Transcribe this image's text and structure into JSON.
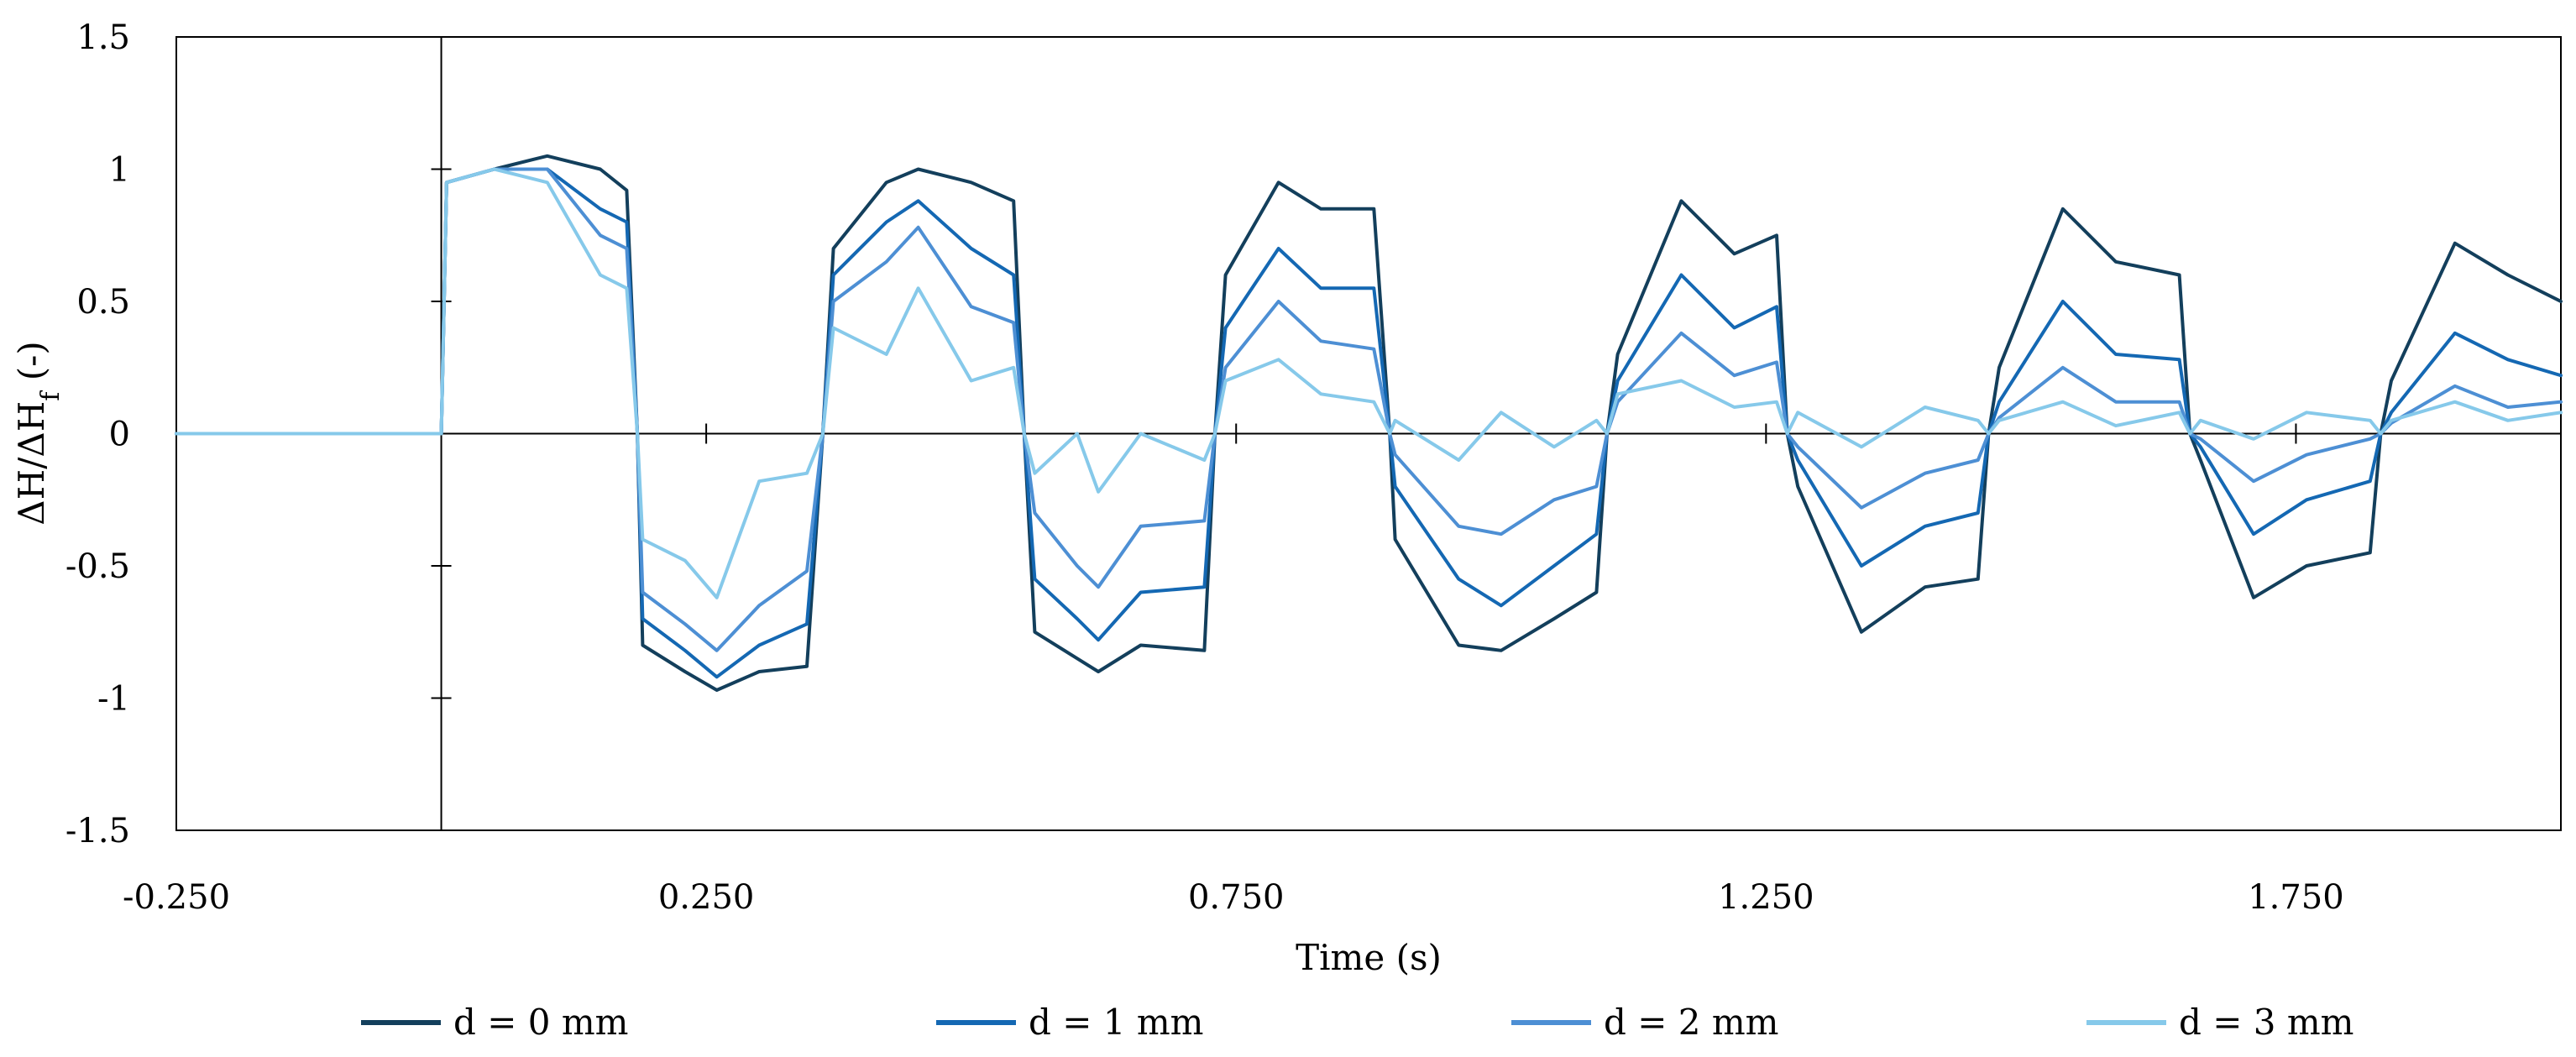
{
  "chart_data": {
    "type": "line",
    "title": "",
    "xlabel": "Time (s)",
    "ylabel": "ΔH/ΔH_f (-)",
    "xlim": [
      -0.25,
      2.0
    ],
    "ylim": [
      -1.5,
      1.5
    ],
    "x_ticks": [
      -0.25,
      0.25,
      0.75,
      1.25,
      1.75
    ],
    "x_tick_labels": [
      "-0.250",
      "0.250",
      "0.750",
      "1.250",
      "1.750"
    ],
    "y_ticks": [
      -1.5,
      -1,
      -0.5,
      0,
      0.5,
      1,
      1.5
    ],
    "y_tick_labels": [
      "-1.5",
      "-1",
      "-0.5",
      "0",
      "0.5",
      "1",
      "1.5"
    ],
    "legend_position": "bottom",
    "grid": false,
    "series": [
      {
        "name": "d = 0 mm",
        "color": "#133f5c",
        "points": [
          [
            -0.25,
            0.0
          ],
          [
            0.0,
            0.0
          ],
          [
            0.005,
            0.95
          ],
          [
            0.05,
            1.0
          ],
          [
            0.1,
            1.05
          ],
          [
            0.15,
            1.0
          ],
          [
            0.175,
            0.92
          ],
          [
            0.185,
            0.0
          ],
          [
            0.19,
            -0.8
          ],
          [
            0.23,
            -0.9
          ],
          [
            0.26,
            -0.97
          ],
          [
            0.3,
            -0.9
          ],
          [
            0.345,
            -0.88
          ],
          [
            0.36,
            0.0
          ],
          [
            0.37,
            0.7
          ],
          [
            0.42,
            0.95
          ],
          [
            0.45,
            1.0
          ],
          [
            0.5,
            0.95
          ],
          [
            0.54,
            0.88
          ],
          [
            0.55,
            0.0
          ],
          [
            0.56,
            -0.75
          ],
          [
            0.6,
            -0.85
          ],
          [
            0.62,
            -0.9
          ],
          [
            0.66,
            -0.8
          ],
          [
            0.72,
            -0.82
          ],
          [
            0.73,
            0.0
          ],
          [
            0.74,
            0.6
          ],
          [
            0.79,
            0.95
          ],
          [
            0.83,
            0.85
          ],
          [
            0.88,
            0.85
          ],
          [
            0.895,
            0.0
          ],
          [
            0.9,
            -0.4
          ],
          [
            0.96,
            -0.8
          ],
          [
            1.0,
            -0.82
          ],
          [
            1.05,
            -0.7
          ],
          [
            1.09,
            -0.6
          ],
          [
            1.1,
            0.0
          ],
          [
            1.11,
            0.3
          ],
          [
            1.17,
            0.88
          ],
          [
            1.22,
            0.68
          ],
          [
            1.26,
            0.75
          ],
          [
            1.27,
            0.0
          ],
          [
            1.28,
            -0.2
          ],
          [
            1.34,
            -0.75
          ],
          [
            1.4,
            -0.58
          ],
          [
            1.45,
            -0.55
          ],
          [
            1.46,
            0.0
          ],
          [
            1.47,
            0.25
          ],
          [
            1.53,
            0.85
          ],
          [
            1.58,
            0.65
          ],
          [
            1.64,
            0.6
          ],
          [
            1.65,
            0.0
          ],
          [
            1.66,
            -0.1
          ],
          [
            1.71,
            -0.62
          ],
          [
            1.76,
            -0.5
          ],
          [
            1.82,
            -0.45
          ],
          [
            1.83,
            0.0
          ],
          [
            1.84,
            0.2
          ],
          [
            1.9,
            0.72
          ],
          [
            1.95,
            0.6
          ],
          [
            2.0,
            0.5
          ]
        ]
      },
      {
        "name": "d = 1 mm",
        "color": "#1468b3",
        "points": [
          [
            -0.25,
            0.0
          ],
          [
            0.0,
            0.0
          ],
          [
            0.005,
            0.95
          ],
          [
            0.05,
            1.0
          ],
          [
            0.1,
            1.0
          ],
          [
            0.15,
            0.85
          ],
          [
            0.175,
            0.8
          ],
          [
            0.185,
            0.0
          ],
          [
            0.19,
            -0.7
          ],
          [
            0.23,
            -0.82
          ],
          [
            0.26,
            -0.92
          ],
          [
            0.3,
            -0.8
          ],
          [
            0.345,
            -0.72
          ],
          [
            0.36,
            0.0
          ],
          [
            0.37,
            0.6
          ],
          [
            0.42,
            0.8
          ],
          [
            0.45,
            0.88
          ],
          [
            0.5,
            0.7
          ],
          [
            0.54,
            0.6
          ],
          [
            0.55,
            0.0
          ],
          [
            0.56,
            -0.55
          ],
          [
            0.6,
            -0.7
          ],
          [
            0.62,
            -0.78
          ],
          [
            0.66,
            -0.6
          ],
          [
            0.72,
            -0.58
          ],
          [
            0.73,
            0.0
          ],
          [
            0.74,
            0.4
          ],
          [
            0.79,
            0.7
          ],
          [
            0.83,
            0.55
          ],
          [
            0.88,
            0.55
          ],
          [
            0.895,
            0.0
          ],
          [
            0.9,
            -0.2
          ],
          [
            0.96,
            -0.55
          ],
          [
            1.0,
            -0.65
          ],
          [
            1.05,
            -0.5
          ],
          [
            1.09,
            -0.38
          ],
          [
            1.1,
            0.0
          ],
          [
            1.11,
            0.2
          ],
          [
            1.17,
            0.6
          ],
          [
            1.22,
            0.4
          ],
          [
            1.26,
            0.48
          ],
          [
            1.27,
            0.0
          ],
          [
            1.28,
            -0.1
          ],
          [
            1.34,
            -0.5
          ],
          [
            1.4,
            -0.35
          ],
          [
            1.45,
            -0.3
          ],
          [
            1.46,
            0.0
          ],
          [
            1.47,
            0.12
          ],
          [
            1.53,
            0.5
          ],
          [
            1.58,
            0.3
          ],
          [
            1.64,
            0.28
          ],
          [
            1.65,
            0.0
          ],
          [
            1.66,
            -0.05
          ],
          [
            1.71,
            -0.38
          ],
          [
            1.76,
            -0.25
          ],
          [
            1.82,
            -0.18
          ],
          [
            1.83,
            0.0
          ],
          [
            1.84,
            0.08
          ],
          [
            1.9,
            0.38
          ],
          [
            1.95,
            0.28
          ],
          [
            2.0,
            0.22
          ]
        ]
      },
      {
        "name": "d = 2 mm",
        "color": "#4d8fd4",
        "points": [
          [
            -0.25,
            0.0
          ],
          [
            0.0,
            0.0
          ],
          [
            0.005,
            0.95
          ],
          [
            0.05,
            1.0
          ],
          [
            0.1,
            1.0
          ],
          [
            0.15,
            0.75
          ],
          [
            0.175,
            0.7
          ],
          [
            0.185,
            0.0
          ],
          [
            0.19,
            -0.6
          ],
          [
            0.23,
            -0.72
          ],
          [
            0.26,
            -0.82
          ],
          [
            0.3,
            -0.65
          ],
          [
            0.345,
            -0.52
          ],
          [
            0.36,
            0.0
          ],
          [
            0.37,
            0.5
          ],
          [
            0.42,
            0.65
          ],
          [
            0.45,
            0.78
          ],
          [
            0.5,
            0.48
          ],
          [
            0.54,
            0.42
          ],
          [
            0.55,
            0.0
          ],
          [
            0.56,
            -0.3
          ],
          [
            0.6,
            -0.5
          ],
          [
            0.62,
            -0.58
          ],
          [
            0.66,
            -0.35
          ],
          [
            0.72,
            -0.33
          ],
          [
            0.73,
            0.0
          ],
          [
            0.74,
            0.25
          ],
          [
            0.79,
            0.5
          ],
          [
            0.83,
            0.35
          ],
          [
            0.88,
            0.32
          ],
          [
            0.895,
            0.0
          ],
          [
            0.9,
            -0.08
          ],
          [
            0.96,
            -0.35
          ],
          [
            1.0,
            -0.38
          ],
          [
            1.05,
            -0.25
          ],
          [
            1.09,
            -0.2
          ],
          [
            1.1,
            0.0
          ],
          [
            1.11,
            0.12
          ],
          [
            1.17,
            0.38
          ],
          [
            1.22,
            0.22
          ],
          [
            1.26,
            0.27
          ],
          [
            1.27,
            0.0
          ],
          [
            1.28,
            -0.05
          ],
          [
            1.34,
            -0.28
          ],
          [
            1.4,
            -0.15
          ],
          [
            1.45,
            -0.1
          ],
          [
            1.46,
            0.0
          ],
          [
            1.47,
            0.06
          ],
          [
            1.53,
            0.25
          ],
          [
            1.58,
            0.12
          ],
          [
            1.64,
            0.12
          ],
          [
            1.65,
            0.0
          ],
          [
            1.66,
            -0.02
          ],
          [
            1.71,
            -0.18
          ],
          [
            1.76,
            -0.08
          ],
          [
            1.82,
            -0.02
          ],
          [
            1.83,
            0.0
          ],
          [
            1.84,
            0.04
          ],
          [
            1.9,
            0.18
          ],
          [
            1.95,
            0.1
          ],
          [
            2.0,
            0.12
          ]
        ]
      },
      {
        "name": "d = 3 mm",
        "color": "#86c9ea",
        "points": [
          [
            -0.25,
            0.0
          ],
          [
            0.0,
            0.0
          ],
          [
            0.005,
            0.95
          ],
          [
            0.05,
            1.0
          ],
          [
            0.1,
            0.95
          ],
          [
            0.15,
            0.6
          ],
          [
            0.175,
            0.55
          ],
          [
            0.185,
            0.0
          ],
          [
            0.19,
            -0.4
          ],
          [
            0.23,
            -0.48
          ],
          [
            0.26,
            -0.62
          ],
          [
            0.3,
            -0.18
          ],
          [
            0.345,
            -0.15
          ],
          [
            0.36,
            0.0
          ],
          [
            0.37,
            0.4
          ],
          [
            0.42,
            0.3
          ],
          [
            0.45,
            0.55
          ],
          [
            0.5,
            0.2
          ],
          [
            0.54,
            0.25
          ],
          [
            0.55,
            0.0
          ],
          [
            0.56,
            -0.15
          ],
          [
            0.6,
            0.0
          ],
          [
            0.62,
            -0.22
          ],
          [
            0.66,
            0.0
          ],
          [
            0.72,
            -0.1
          ],
          [
            0.73,
            0.0
          ],
          [
            0.74,
            0.2
          ],
          [
            0.79,
            0.28
          ],
          [
            0.83,
            0.15
          ],
          [
            0.88,
            0.12
          ],
          [
            0.895,
            0.0
          ],
          [
            0.9,
            0.05
          ],
          [
            0.96,
            -0.1
          ],
          [
            1.0,
            0.08
          ],
          [
            1.05,
            -0.05
          ],
          [
            1.09,
            0.05
          ],
          [
            1.1,
            0.0
          ],
          [
            1.11,
            0.15
          ],
          [
            1.17,
            0.2
          ],
          [
            1.22,
            0.1
          ],
          [
            1.26,
            0.12
          ],
          [
            1.27,
            0.0
          ],
          [
            1.28,
            0.08
          ],
          [
            1.34,
            -0.05
          ],
          [
            1.4,
            0.1
          ],
          [
            1.45,
            0.05
          ],
          [
            1.46,
            0.0
          ],
          [
            1.47,
            0.05
          ],
          [
            1.53,
            0.12
          ],
          [
            1.58,
            0.03
          ],
          [
            1.64,
            0.08
          ],
          [
            1.65,
            0.0
          ],
          [
            1.66,
            0.05
          ],
          [
            1.71,
            -0.02
          ],
          [
            1.76,
            0.08
          ],
          [
            1.82,
            0.05
          ],
          [
            1.83,
            0.0
          ],
          [
            1.84,
            0.05
          ],
          [
            1.9,
            0.12
          ],
          [
            1.95,
            0.05
          ],
          [
            2.0,
            0.08
          ]
        ]
      }
    ]
  }
}
